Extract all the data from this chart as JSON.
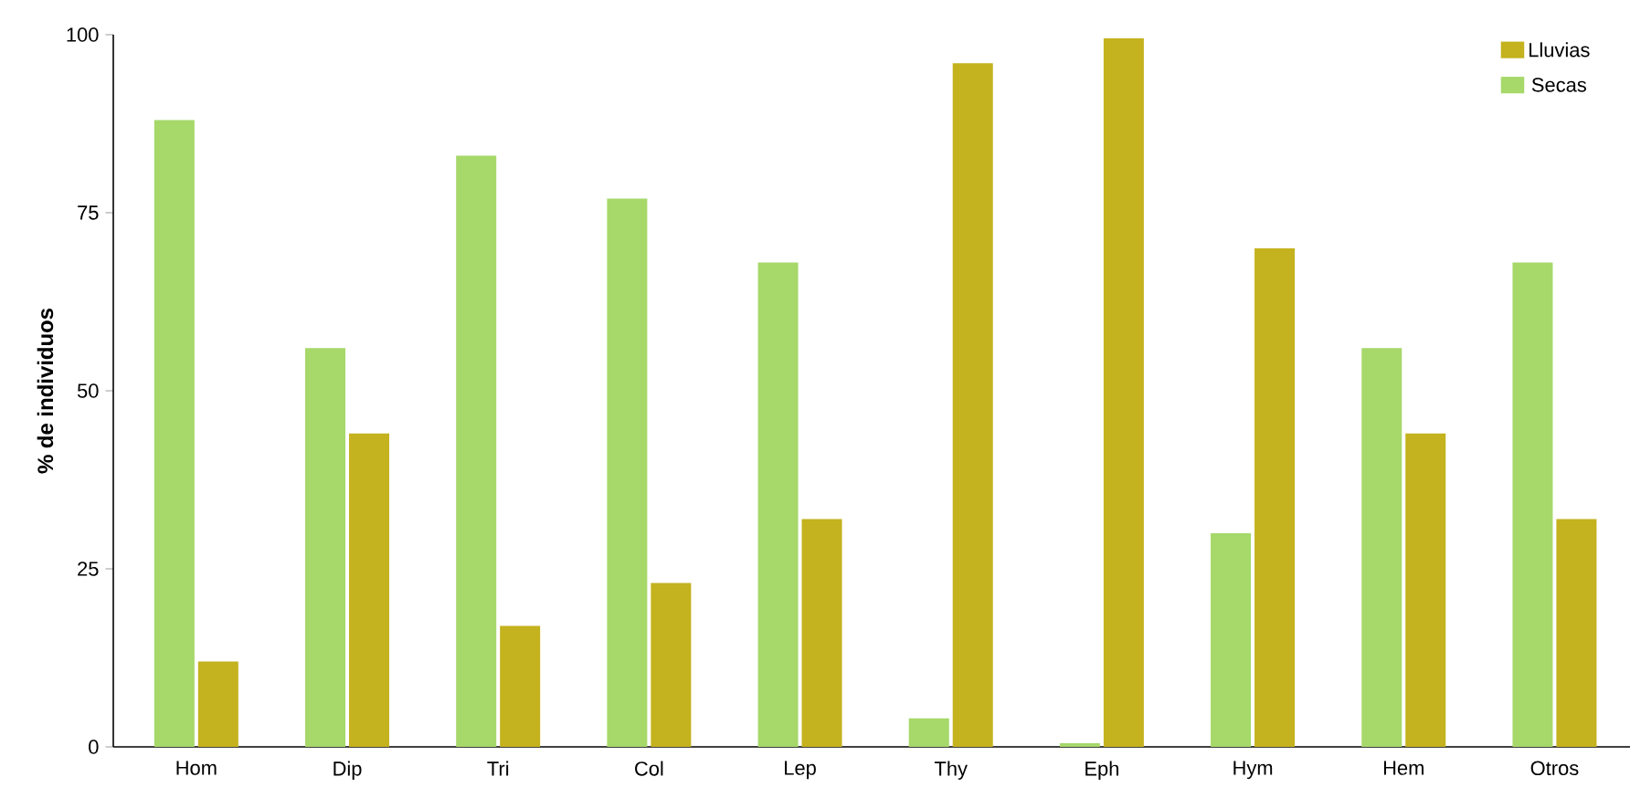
{
  "chart_data": {
    "type": "bar",
    "ylabel": "% de individuos",
    "categories": [
      "Hom",
      "Dip",
      "Tri",
      "Col",
      "Lep",
      "Thy",
      "Eph",
      "Hym",
      "Hem",
      "Otros"
    ],
    "series": [
      {
        "name": "Secas",
        "color": "#a6d86a",
        "values": [
          88,
          56,
          83,
          77,
          68,
          4,
          0.5,
          30,
          56,
          68
        ]
      },
      {
        "name": "Lluvias",
        "color": "#c4b21e",
        "values": [
          12,
          44,
          17,
          23,
          32,
          96,
          99.5,
          70,
          44,
          32
        ]
      }
    ],
    "ylim": [
      0,
      100
    ],
    "yticks": [
      0,
      25,
      50,
      75,
      100
    ],
    "grid": false,
    "legend": "top right"
  }
}
